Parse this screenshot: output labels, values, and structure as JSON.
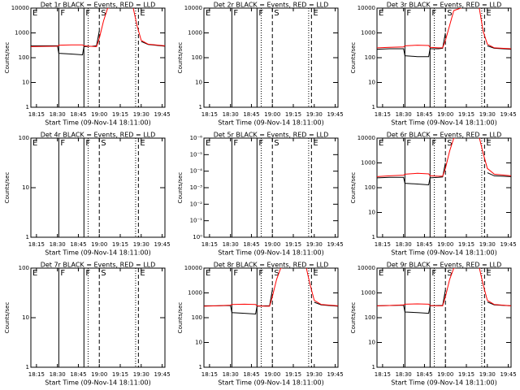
{
  "chart_data": [
    {
      "type": "line",
      "title": "Det 1r BLACK = Events, RED = LLD",
      "xlabel": "Start Time (09-Nov-14 18:11:00)",
      "ylabel": "Counts/sec",
      "log_y": true,
      "x": [
        11,
        20,
        30,
        31,
        40,
        48,
        49,
        55,
        58,
        60,
        63,
        66,
        75,
        84,
        87,
        90,
        95,
        107
      ],
      "series": [
        {
          "name": "Events",
          "color": "#000000",
          "values": [
            300,
            300,
            300,
            150,
            140,
            130,
            280,
            290,
            300,
            1200,
            null,
            null,
            null,
            null,
            null,
            450,
            340,
            290
          ]
        },
        {
          "name": "LLD",
          "color": "#ff0000",
          "values": [
            280,
            285,
            290,
            320,
            330,
            330,
            300,
            285,
            280,
            600,
            3000,
            10000,
            12000,
            12000,
            2000,
            500,
            350,
            300
          ]
        }
      ],
      "xlim": [
        11,
        107
      ],
      "xticks": [
        {
          "value": 15,
          "label": "18:15"
        },
        {
          "value": 30,
          "label": "18:30"
        },
        {
          "value": 45,
          "label": "18:45"
        },
        {
          "value": 60,
          "label": "19:00"
        },
        {
          "value": 75,
          "label": "19:15"
        },
        {
          "value": 90,
          "label": "19:30"
        },
        {
          "value": 105,
          "label": "19:45"
        }
      ],
      "ylim": [
        1,
        10000
      ],
      "yticks": [
        1,
        10,
        100,
        1000,
        10000
      ],
      "events": [
        {
          "x": 31,
          "style": "solid",
          "label": "F"
        },
        {
          "x": 49,
          "style": "solid",
          "label": "F"
        },
        {
          "x": 52,
          "style": "dotted"
        },
        {
          "x": 60,
          "style": "dashed",
          "label": "S"
        },
        {
          "x": 86,
          "style": "dotted"
        },
        {
          "x": 88,
          "style": "dashed",
          "label": "E"
        }
      ],
      "start_label": "E"
    },
    {
      "type": "line",
      "title": "Det 2r BLACK = Events, RED = LLD",
      "xlabel": "Start Time (09-Nov-14 18:11:00)",
      "ylabel": "Counts/sec",
      "log_y": true,
      "xlim": [
        11,
        107
      ],
      "xticks": [
        {
          "value": 15,
          "label": "18:15"
        },
        {
          "value": 30,
          "label": "18:30"
        },
        {
          "value": 45,
          "label": "18:45"
        },
        {
          "value": 60,
          "label": "19:00"
        },
        {
          "value": 75,
          "label": "19:15"
        },
        {
          "value": 90,
          "label": "19:30"
        },
        {
          "value": 105,
          "label": "19:45"
        }
      ],
      "ylim": [
        1,
        10000
      ],
      "yticks": [
        1,
        10,
        100,
        1000,
        10000
      ],
      "events": [
        {
          "x": 31,
          "style": "solid",
          "label": "F"
        },
        {
          "x": 49,
          "style": "solid",
          "label": "F"
        },
        {
          "x": 52,
          "style": "dotted"
        },
        {
          "x": 60,
          "style": "dashed",
          "label": "S"
        },
        {
          "x": 86,
          "style": "dotted"
        },
        {
          "x": 88,
          "style": "dashed",
          "label": "E"
        }
      ],
      "start_label": "E"
    },
    {
      "type": "line",
      "title": "Det 3r BLACK = Events, RED = LLD",
      "xlabel": "Start Time (09-Nov-14 18:11:00)",
      "ylabel": "Counts/sec",
      "log_y": true,
      "x": [
        11,
        20,
        30,
        31,
        40,
        48,
        49,
        55,
        58,
        60,
        63,
        66,
        75,
        84,
        87,
        90,
        95,
        107
      ],
      "series": [
        {
          "name": "Events",
          "color": "#000000",
          "values": [
            220,
            230,
            230,
            120,
            110,
            110,
            230,
            230,
            240,
            1000,
            null,
            null,
            null,
            null,
            null,
            300,
            240,
            220
          ]
        },
        {
          "name": "LLD",
          "color": "#ff0000",
          "values": [
            250,
            260,
            270,
            300,
            320,
            310,
            260,
            250,
            250,
            500,
            2000,
            8000,
            12000,
            12000,
            1200,
            350,
            250,
            230
          ]
        }
      ],
      "xlim": [
        11,
        107
      ],
      "xticks": [
        {
          "value": 15,
          "label": "18:15"
        },
        {
          "value": 30,
          "label": "18:30"
        },
        {
          "value": 45,
          "label": "18:45"
        },
        {
          "value": 60,
          "label": "19:00"
        },
        {
          "value": 75,
          "label": "19:15"
        },
        {
          "value": 90,
          "label": "19:30"
        },
        {
          "value": 105,
          "label": "19:45"
        }
      ],
      "ylim": [
        1,
        10000
      ],
      "yticks": [
        1,
        10,
        100,
        1000,
        10000
      ],
      "events": [
        {
          "x": 31,
          "style": "solid",
          "label": "F"
        },
        {
          "x": 49,
          "style": "solid",
          "label": "F"
        },
        {
          "x": 52,
          "style": "dotted"
        },
        {
          "x": 60,
          "style": "dashed",
          "label": "S"
        },
        {
          "x": 86,
          "style": "dotted"
        },
        {
          "x": 88,
          "style": "dashed",
          "label": "E"
        }
      ],
      "start_label": "E"
    },
    {
      "type": "line",
      "title": "Det 4r BLACK = Events, RED = LLD",
      "xlabel": "Start Time (09-Nov-14 18:11:00)",
      "ylabel": "Counts/sec",
      "log_y": true,
      "xlim": [
        11,
        107
      ],
      "xticks": [
        {
          "value": 15,
          "label": "18:15"
        },
        {
          "value": 30,
          "label": "18:30"
        },
        {
          "value": 45,
          "label": "18:45"
        },
        {
          "value": 60,
          "label": "19:00"
        },
        {
          "value": 75,
          "label": "19:15"
        },
        {
          "value": 90,
          "label": "19:30"
        },
        {
          "value": 105,
          "label": "19:45"
        }
      ],
      "ylim": [
        1,
        100
      ],
      "yticks": [
        1,
        10,
        100
      ],
      "events": [
        {
          "x": 31,
          "style": "solid",
          "label": "F"
        },
        {
          "x": 49,
          "style": "solid",
          "label": "F"
        },
        {
          "x": 52,
          "style": "dotted"
        },
        {
          "x": 60,
          "style": "dashed",
          "label": "S"
        },
        {
          "x": 86,
          "style": "dotted"
        },
        {
          "x": 88,
          "style": "dashed",
          "label": "E"
        }
      ],
      "start_label": "E"
    },
    {
      "type": "line",
      "title": "Det 5r BLACK = Events, RED = LLD",
      "xlabel": "Start Time (09-Nov-14 18:11:00)",
      "ylabel": "Counts/sec",
      "log_y": true,
      "xlim": [
        11,
        107
      ],
      "xticks": [
        {
          "value": 15,
          "label": "18:15"
        },
        {
          "value": 30,
          "label": "18:30"
        },
        {
          "value": 45,
          "label": "18:45"
        },
        {
          "value": 60,
          "label": "19:00"
        },
        {
          "value": 75,
          "label": "19:15"
        },
        {
          "value": 90,
          "label": "19:30"
        },
        {
          "value": 105,
          "label": "19:45"
        }
      ],
      "ylim": [
        1,
        1e-06
      ],
      "yticks": [
        {
          "value": 1e-06,
          "label": "10⁻⁶"
        },
        {
          "value": 1e-05,
          "label": "10⁻⁵"
        },
        {
          "value": 0.0001,
          "label": "10⁻⁴"
        },
        {
          "value": 0.001,
          "label": "10⁻³"
        },
        {
          "value": 0.01,
          "label": "10⁻²"
        },
        {
          "value": 0.1,
          "label": "10⁻¹"
        },
        {
          "value": 1,
          "label": "10⁰"
        }
      ],
      "events": [
        {
          "x": 31,
          "style": "solid",
          "label": "F"
        },
        {
          "x": 49,
          "style": "solid",
          "label": "F"
        },
        {
          "x": 52,
          "style": "dotted"
        },
        {
          "x": 60,
          "style": "dashed",
          "label": "S"
        },
        {
          "x": 86,
          "style": "dotted"
        },
        {
          "x": 88,
          "style": "dashed",
          "label": "E"
        }
      ],
      "start_label": "E"
    },
    {
      "type": "line",
      "title": "Det 6r BLACK = Events, RED = LLD",
      "xlabel": "Start Time (09-Nov-14 18:11:00)",
      "ylabel": "Counts/sec",
      "log_y": true,
      "x": [
        11,
        20,
        30,
        31,
        40,
        48,
        49,
        55,
        58,
        60,
        63,
        66,
        75,
        84,
        87,
        90,
        95,
        107
      ],
      "series": [
        {
          "name": "Events",
          "color": "#000000",
          "values": [
            250,
            260,
            260,
            150,
            140,
            130,
            250,
            260,
            270,
            1000,
            null,
            null,
            null,
            null,
            null,
            400,
            300,
            280
          ]
        },
        {
          "name": "LLD",
          "color": "#ff0000",
          "values": [
            280,
            300,
            320,
            350,
            380,
            360,
            300,
            290,
            290,
            600,
            3000,
            10000,
            12000,
            12000,
            2500,
            600,
            350,
            300
          ]
        }
      ],
      "xlim": [
        11,
        107
      ],
      "xticks": [
        {
          "value": 15,
          "label": "18:15"
        },
        {
          "value": 30,
          "label": "18:30"
        },
        {
          "value": 45,
          "label": "18:45"
        },
        {
          "value": 60,
          "label": "19:00"
        },
        {
          "value": 75,
          "label": "19:15"
        },
        {
          "value": 90,
          "label": "19:30"
        },
        {
          "value": 105,
          "label": "19:45"
        }
      ],
      "ylim": [
        1,
        10000
      ],
      "yticks": [
        1,
        10,
        100,
        1000,
        10000
      ],
      "events": [
        {
          "x": 31,
          "style": "solid",
          "label": "F"
        },
        {
          "x": 49,
          "style": "solid",
          "label": "F"
        },
        {
          "x": 52,
          "style": "dotted"
        },
        {
          "x": 60,
          "style": "dashed",
          "label": "S"
        },
        {
          "x": 86,
          "style": "dotted"
        },
        {
          "x": 88,
          "style": "dashed",
          "label": "E"
        }
      ],
      "start_label": "E"
    },
    {
      "type": "line",
      "title": "Det 7r BLACK = Events, RED = LLD",
      "xlabel": "Start Time (09-Nov-14 18:11:00)",
      "ylabel": "Counts/sec",
      "log_y": true,
      "xlim": [
        11,
        107
      ],
      "xticks": [
        {
          "value": 15,
          "label": "18:15"
        },
        {
          "value": 30,
          "label": "18:30"
        },
        {
          "value": 45,
          "label": "18:45"
        },
        {
          "value": 60,
          "label": "19:00"
        },
        {
          "value": 75,
          "label": "19:15"
        },
        {
          "value": 90,
          "label": "19:30"
        },
        {
          "value": 105,
          "label": "19:45"
        }
      ],
      "ylim": [
        1,
        100
      ],
      "yticks": [
        1,
        10,
        100
      ],
      "events": [
        {
          "x": 31,
          "style": "solid",
          "label": "F"
        },
        {
          "x": 49,
          "style": "solid",
          "label": "F"
        },
        {
          "x": 52,
          "style": "dotted"
        },
        {
          "x": 60,
          "style": "dashed",
          "label": "S"
        },
        {
          "x": 86,
          "style": "dotted"
        },
        {
          "x": 88,
          "style": "dashed",
          "label": "E"
        }
      ],
      "start_label": "E"
    },
    {
      "type": "line",
      "title": "Det 8r BLACK = Events, RED = LLD",
      "xlabel": "Start Time (09-Nov-14 18:11:00)",
      "ylabel": "Counts/sec",
      "log_y": true,
      "x": [
        11,
        20,
        30,
        31,
        40,
        48,
        49,
        55,
        58,
        60,
        63,
        66,
        75,
        84,
        87,
        90,
        95,
        107
      ],
      "series": [
        {
          "name": "Events",
          "color": "#000000",
          "values": [
            300,
            300,
            310,
            160,
            150,
            140,
            290,
            300,
            300,
            1300,
            null,
            null,
            null,
            null,
            null,
            420,
            330,
            290
          ]
        },
        {
          "name": "LLD",
          "color": "#ff0000",
          "values": [
            290,
            300,
            320,
            340,
            350,
            340,
            300,
            290,
            290,
            700,
            3500,
            10000,
            12000,
            12000,
            2200,
            500,
            340,
            300
          ]
        }
      ],
      "xlim": [
        11,
        107
      ],
      "xticks": [
        {
          "value": 15,
          "label": "18:15"
        },
        {
          "value": 30,
          "label": "18:30"
        },
        {
          "value": 45,
          "label": "18:45"
        },
        {
          "value": 60,
          "label": "19:00"
        },
        {
          "value": 75,
          "label": "19:15"
        },
        {
          "value": 90,
          "label": "19:30"
        },
        {
          "value": 105,
          "label": "19:45"
        }
      ],
      "ylim": [
        1,
        10000
      ],
      "yticks": [
        1,
        10,
        100,
        1000,
        10000
      ],
      "events": [
        {
          "x": 31,
          "style": "solid",
          "label": "F"
        },
        {
          "x": 49,
          "style": "solid",
          "label": "F"
        },
        {
          "x": 52,
          "style": "dotted"
        },
        {
          "x": 60,
          "style": "dashed",
          "label": "S"
        },
        {
          "x": 86,
          "style": "dotted"
        },
        {
          "x": 88,
          "style": "dashed",
          "label": "E"
        }
      ],
      "start_label": "E"
    },
    {
      "type": "line",
      "title": "Det 9r BLACK = Events, RED = LLD",
      "xlabel": "Start Time (09-Nov-14 18:11:00)",
      "ylabel": "Counts/sec",
      "log_y": true,
      "x": [
        11,
        20,
        30,
        31,
        40,
        48,
        49,
        55,
        58,
        60,
        63,
        66,
        75,
        84,
        87,
        90,
        95,
        107
      ],
      "series": [
        {
          "name": "Events",
          "color": "#000000",
          "values": [
            300,
            310,
            320,
            170,
            160,
            150,
            300,
            310,
            310,
            1300,
            null,
            null,
            null,
            null,
            null,
            430,
            330,
            300
          ]
        },
        {
          "name": "LLD",
          "color": "#ff0000",
          "values": [
            300,
            310,
            330,
            350,
            360,
            350,
            310,
            300,
            300,
            700,
            3500,
            10000,
            12000,
            12000,
            2200,
            500,
            340,
            300
          ]
        }
      ],
      "xlim": [
        11,
        107
      ],
      "xticks": [
        {
          "value": 15,
          "label": "18:15"
        },
        {
          "value": 30,
          "label": "18:30"
        },
        {
          "value": 45,
          "label": "18:45"
        },
        {
          "value": 60,
          "label": "19:00"
        },
        {
          "value": 75,
          "label": "19:15"
        },
        {
          "value": 90,
          "label": "19:30"
        },
        {
          "value": 105,
          "label": "19:45"
        }
      ],
      "ylim": [
        1,
        10000
      ],
      "yticks": [
        1,
        10,
        100,
        1000,
        10000
      ],
      "events": [
        {
          "x": 31,
          "style": "solid",
          "label": "F"
        },
        {
          "x": 49,
          "style": "solid",
          "label": "F"
        },
        {
          "x": 52,
          "style": "dotted"
        },
        {
          "x": 60,
          "style": "dashed",
          "label": "S"
        },
        {
          "x": 86,
          "style": "dotted"
        },
        {
          "x": 88,
          "style": "dashed",
          "label": "E"
        }
      ],
      "start_label": "E"
    }
  ]
}
